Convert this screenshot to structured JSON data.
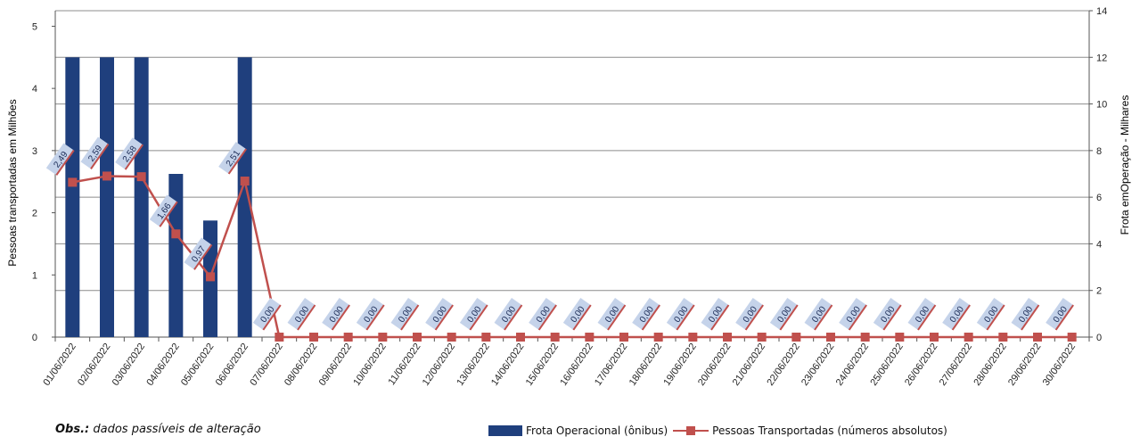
{
  "chart_data": {
    "type": "bar",
    "categories": [
      "01/06/2022",
      "02/06/2022",
      "03/06/2022",
      "04/06/2022",
      "05/06/2022",
      "06/06/2022",
      "07/06/2022",
      "08/06/2022",
      "09/06/2022",
      "10/06/2022",
      "11/06/2022",
      "12/06/2022",
      "13/06/2022",
      "14/06/2022",
      "15/06/2022",
      "16/06/2022",
      "17/06/2022",
      "18/06/2022",
      "19/06/2022",
      "20/06/2022",
      "21/06/2022",
      "22/06/2022",
      "23/06/2022",
      "24/06/2022",
      "25/06/2022",
      "26/06/2022",
      "27/06/2022",
      "28/06/2022",
      "29/06/2022",
      "30/06/2022"
    ],
    "series": [
      {
        "name": "Frota Operacional (ônibus)",
        "type": "bar",
        "axis": "right",
        "color": "#1f3f7d",
        "values": [
          12.0,
          12.0,
          12.0,
          7.0,
          5.0,
          12.0,
          0,
          0,
          0,
          0,
          0,
          0,
          0,
          0,
          0,
          0,
          0,
          0,
          0,
          0,
          0,
          0,
          0,
          0,
          0,
          0,
          0,
          0,
          0,
          0
        ]
      },
      {
        "name": "Pessoas Transportadas (números absolutos)",
        "type": "line",
        "axis": "left",
        "color": "#c0504d",
        "values": [
          2.49,
          2.59,
          2.58,
          1.66,
          0.97,
          2.51,
          0,
          0,
          0,
          0,
          0,
          0,
          0,
          0,
          0,
          0,
          0,
          0,
          0,
          0,
          0,
          0,
          0,
          0,
          0,
          0,
          0,
          0,
          0,
          0
        ],
        "labels": [
          "2,49",
          "2,59",
          "2,58",
          "1,66",
          "0,97",
          "2,51",
          "0,00",
          "0,00",
          "0,00",
          "0,00",
          "0,00",
          "0,00",
          "0,00",
          "0,00",
          "0,00",
          "0,00",
          "0,00",
          "0,00",
          "0,00",
          "0,00",
          "0,00",
          "0,00",
          "0,00",
          "0,00",
          "0,00",
          "0,00",
          "0,00",
          "0,00",
          "0,00",
          "0,00"
        ]
      }
    ],
    "ylabel": "Pessoas transportadas em Milhões",
    "y2label": "Frota emOperação - Milhares",
    "ylim": [
      0,
      5.25
    ],
    "yticks": [
      "0",
      "1",
      "2",
      "3",
      "4",
      "5"
    ],
    "y2lim": [
      0,
      14
    ],
    "y2ticks": [
      "0",
      "2",
      "4",
      "6",
      "8",
      "10",
      "12",
      "14"
    ],
    "grid": true,
    "legend_position": "bottom-right"
  },
  "note": {
    "bold": "Obs.:",
    "text": " dados passíveis  de alteração"
  },
  "legend": {
    "bar_label": "Frota Operacional (ônibus)",
    "line_label": "Pessoas Transportadas (números absolutos)"
  }
}
